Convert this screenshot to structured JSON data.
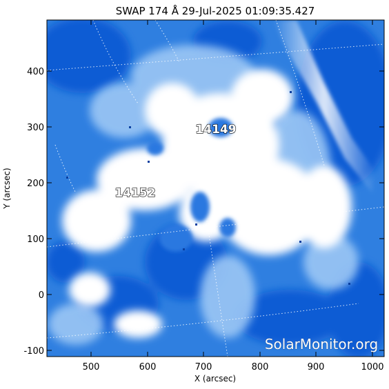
{
  "title": "SWAP 174 Å 29-Jul-2025 01:09:35.427",
  "x_axis": {
    "label": "X (arcsec)",
    "range": [
      420,
      1040
    ],
    "ticks": [
      "500",
      "600",
      "700",
      "800",
      "900",
      "1000"
    ]
  },
  "y_axis": {
    "label": "Y (arcsec)",
    "range": [
      -115,
      490
    ],
    "ticks": [
      "-100",
      "0",
      "100",
      "200",
      "300",
      "400"
    ]
  },
  "regions": [
    {
      "label": "14149"
    },
    {
      "label": "14152"
    }
  ],
  "credit": "SolarMonitor.org",
  "colors": {
    "deep": "#0a5ad2",
    "mid": "#3c8ee6",
    "light": "#b8d6f8",
    "bright": "#ffffff"
  }
}
